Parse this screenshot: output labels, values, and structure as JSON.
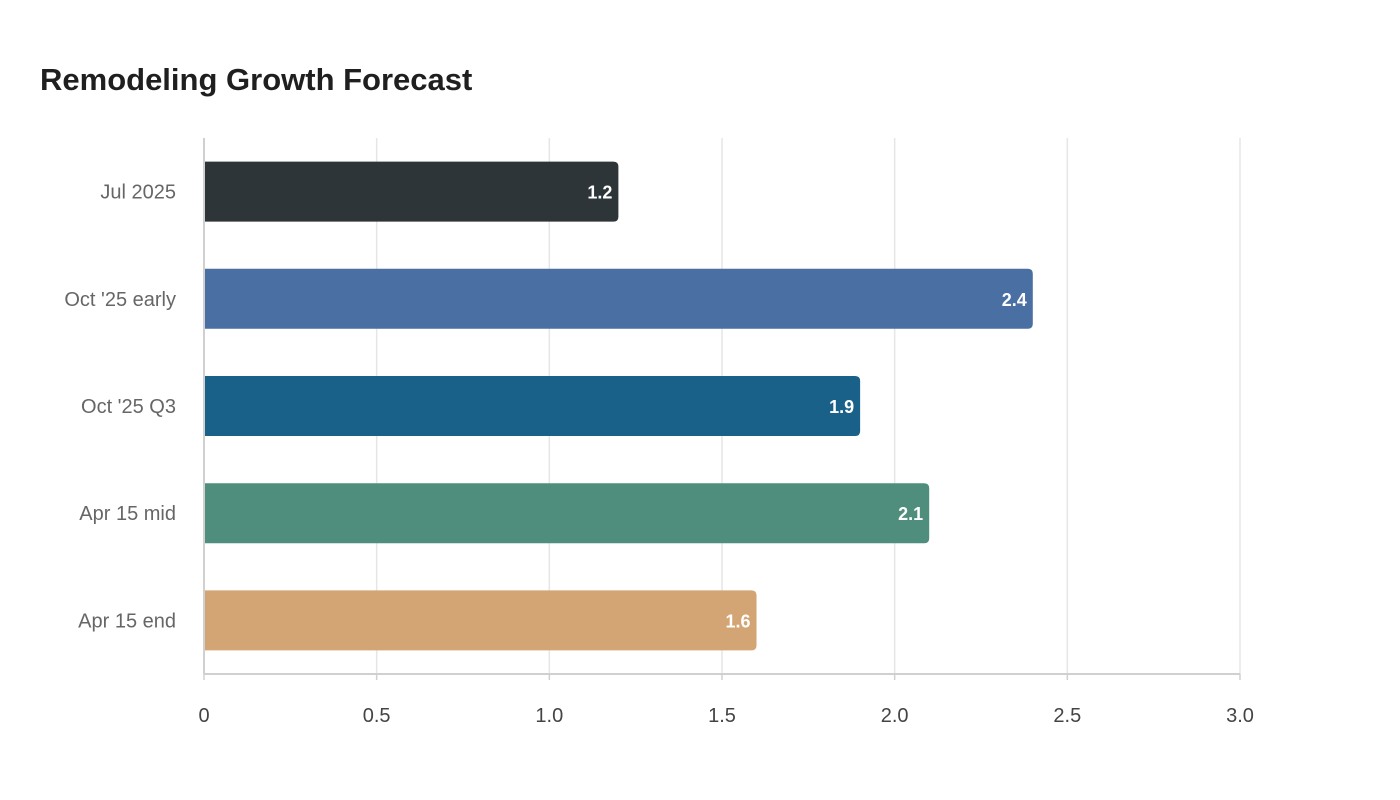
{
  "chart_data": {
    "type": "bar",
    "orientation": "horizontal",
    "title": "Remodeling Growth Forecast",
    "xlabel": "",
    "ylabel": "",
    "categories": [
      "Jul 2025",
      "Oct '25 early",
      "Oct '25 Q3",
      "Apr 15 mid",
      "Apr 15 end"
    ],
    "values": [
      1.2,
      2.4,
      1.9,
      2.1,
      1.6
    ],
    "colors": [
      "#2e3538",
      "#4a6fa2",
      "#1a6189",
      "#4f8e7c",
      "#d3a575"
    ],
    "xlim": [
      0,
      3.0
    ],
    "ticks": [
      0,
      0.5,
      1.0,
      1.5,
      2.0,
      2.5,
      3.0
    ],
    "tick_labels": [
      "0",
      "0.5",
      "1.0",
      "1.5",
      "2.0",
      "2.5",
      "3.0"
    ],
    "grid": "vertical",
    "legend": "none",
    "value_labels_inside_bar_end": true
  }
}
